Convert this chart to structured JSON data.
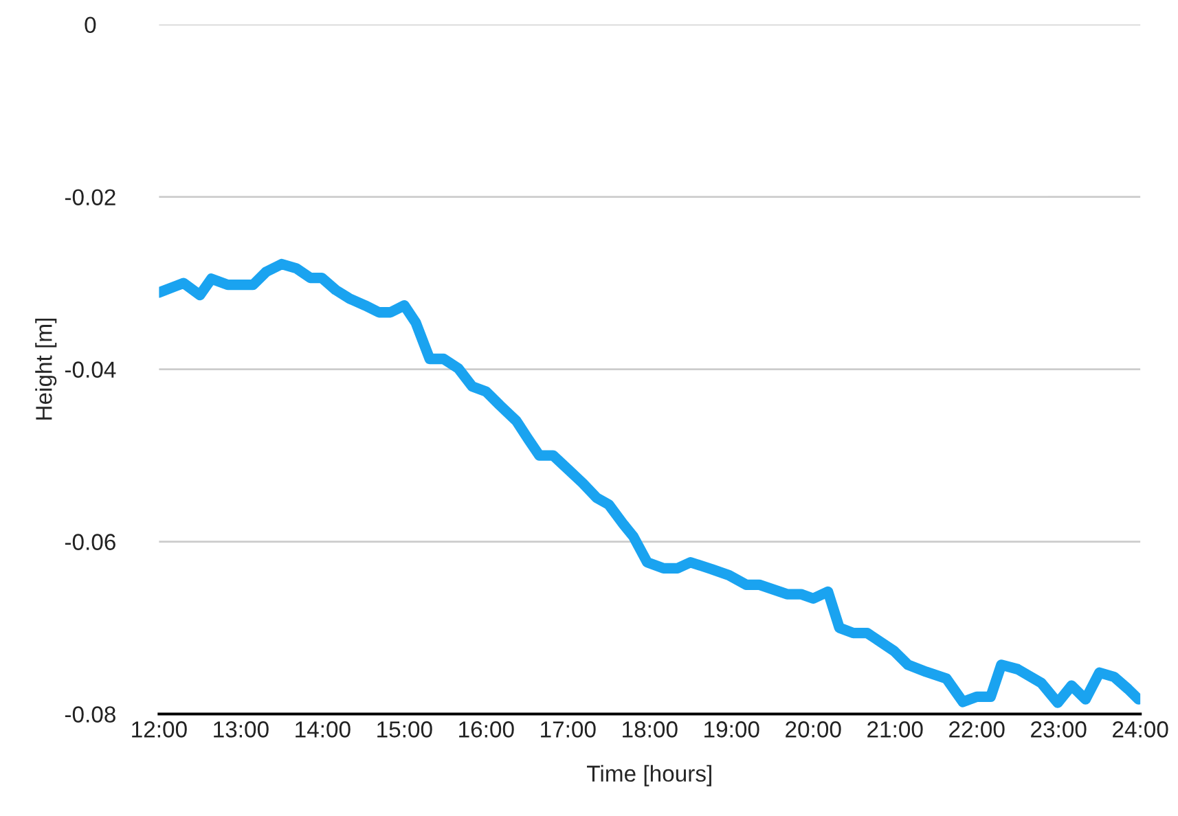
{
  "chart_data": {
    "type": "line",
    "xlabel": "Time [hours]",
    "ylabel": "Height [m]",
    "xlim": [
      12,
      24
    ],
    "xticks": [
      {
        "value": 12,
        "label": "12:00"
      },
      {
        "value": 13,
        "label": "13:00"
      },
      {
        "value": 14,
        "label": "14:00"
      },
      {
        "value": 15,
        "label": "15:00"
      },
      {
        "value": 16,
        "label": "16:00"
      },
      {
        "value": 17,
        "label": "17:00"
      },
      {
        "value": 18,
        "label": "18:00"
      },
      {
        "value": 19,
        "label": "19:00"
      },
      {
        "value": 20,
        "label": "20:00"
      },
      {
        "value": 21,
        "label": "21:00"
      },
      {
        "value": 22,
        "label": "22:00"
      },
      {
        "value": 23,
        "label": "23:00"
      },
      {
        "value": 24,
        "label": "24:00"
      }
    ],
    "ylim": [
      -0.08,
      0
    ],
    "yticks": [
      {
        "value": -0.08,
        "label": "-0.08"
      },
      {
        "value": -0.06,
        "label": "-0.06"
      },
      {
        "value": -0.04,
        "label": "-0.04"
      },
      {
        "value": -0.02,
        "label": "-0.02"
      },
      {
        "value": 0,
        "label": "0"
      }
    ],
    "grid": "y",
    "legend": false,
    "marker": "none",
    "line_style": "solid",
    "series": [
      {
        "color": "#1aa3f0",
        "x": [
          12.0,
          12.3,
          12.5,
          12.64,
          12.84,
          13.15,
          13.31,
          13.5,
          13.68,
          13.85,
          13.99,
          14.16,
          14.33,
          14.52,
          14.69,
          14.83,
          15.0,
          15.14,
          15.31,
          15.48,
          15.66,
          15.83,
          16.0,
          16.17,
          16.37,
          16.5,
          16.65,
          16.82,
          17.0,
          17.18,
          17.35,
          17.5,
          17.68,
          17.8,
          17.97,
          18.17,
          18.34,
          18.5,
          18.76,
          18.97,
          19.18,
          19.34,
          19.68,
          19.85,
          20.0,
          20.18,
          20.32,
          20.49,
          20.66,
          20.99,
          21.16,
          21.38,
          21.63,
          21.83,
          22.0,
          22.17,
          22.3,
          22.5,
          22.79,
          22.99,
          23.16,
          23.33,
          23.5,
          23.68,
          23.85,
          23.98
        ],
        "values": [
          -0.0311,
          -0.03,
          -0.0314,
          -0.0295,
          -0.0302,
          -0.0302,
          -0.0287,
          -0.0278,
          -0.0283,
          -0.0294,
          -0.0294,
          -0.0308,
          -0.0318,
          -0.0326,
          -0.0334,
          -0.0334,
          -0.0326,
          -0.0346,
          -0.0388,
          -0.0388,
          -0.0399,
          -0.042,
          -0.0426,
          -0.0442,
          -0.046,
          -0.0479,
          -0.05,
          -0.05,
          -0.0516,
          -0.0532,
          -0.0549,
          -0.0557,
          -0.058,
          -0.0594,
          -0.0624,
          -0.0631,
          -0.0631,
          -0.0624,
          -0.0632,
          -0.0639,
          -0.065,
          -0.065,
          -0.0661,
          -0.0661,
          -0.0666,
          -0.0658,
          -0.07,
          -0.0706,
          -0.0706,
          -0.0727,
          -0.0743,
          -0.0751,
          -0.0759,
          -0.0786,
          -0.078,
          -0.078,
          -0.0743,
          -0.0748,
          -0.0764,
          -0.0787,
          -0.0767,
          -0.0783,
          -0.0752,
          -0.0757,
          -0.0771,
          -0.0783
        ]
      }
    ]
  }
}
